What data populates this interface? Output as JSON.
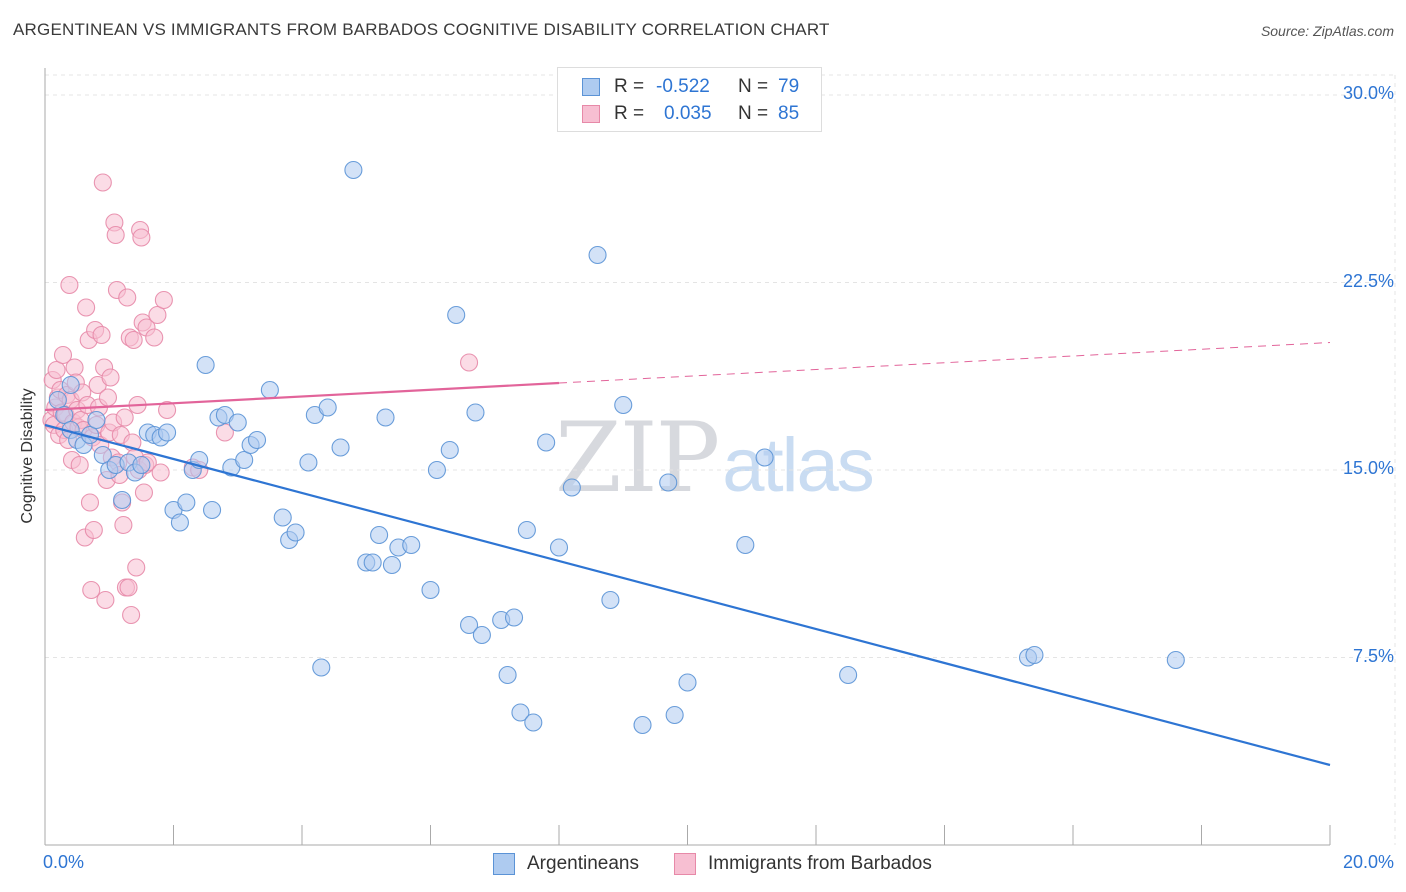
{
  "header": {
    "title": "ARGENTINEAN VS IMMIGRANTS FROM BARBADOS COGNITIVE DISABILITY CORRELATION CHART",
    "source": "Source: ZipAtlas.com"
  },
  "legend": {
    "rows": [
      {
        "r_label": "R =",
        "r_value": "-0.522",
        "n_label": "N =",
        "n_value": "79"
      },
      {
        "r_label": "R =",
        "r_value": "0.035",
        "n_label": "N =",
        "n_value": "85"
      }
    ]
  },
  "bottom_legend": {
    "items": [
      {
        "label": "Argentineans"
      },
      {
        "label": "Immigrants from Barbados"
      }
    ]
  },
  "watermark": {
    "zip": "ZIP",
    "atlas": "atlas"
  },
  "colors": {
    "blue_fill": "#aecbf0",
    "blue_stroke": "#5b93d6",
    "blue_line": "#2e75d3",
    "pink_fill": "#f7bfd2",
    "pink_stroke": "#e789a8",
    "pink_line": "#e2649a",
    "tick_text": "#2e75d3",
    "grid": "#e4e4e4"
  },
  "chart_data": {
    "type": "scatter",
    "title": "ARGENTINEAN VS IMMIGRANTS FROM BARBADOS COGNITIVE DISABILITY CORRELATION CHART",
    "ylabel": "Cognitive Disability",
    "xlabel": "",
    "xlim": [
      0,
      20
    ],
    "ylim": [
      0,
      30.8
    ],
    "x_tick_labels": [
      "0.0%",
      "20.0%"
    ],
    "y_ticks": [
      7.5,
      15.0,
      22.5,
      30.0
    ],
    "y_tick_labels": [
      "7.5%",
      "15.0%",
      "22.5%",
      "30.0%"
    ],
    "grid": true,
    "legend_position": "top-center",
    "series": [
      {
        "name": "Argentineans",
        "color": "#aecbf0",
        "trend": {
          "x": [
            0,
            20
          ],
          "y": [
            16.8,
            3.2
          ],
          "dashed_from": null
        },
        "points": [
          [
            0.2,
            17.8
          ],
          [
            0.3,
            17.2
          ],
          [
            0.4,
            16.6
          ],
          [
            0.5,
            16.2
          ],
          [
            0.6,
            16.0
          ],
          [
            0.7,
            16.4
          ],
          [
            0.8,
            17.0
          ],
          [
            0.9,
            15.6
          ],
          [
            1.0,
            15.0
          ],
          [
            1.1,
            15.2
          ],
          [
            1.2,
            13.8
          ],
          [
            1.3,
            15.3
          ],
          [
            1.4,
            14.9
          ],
          [
            1.5,
            15.2
          ],
          [
            1.6,
            16.5
          ],
          [
            1.7,
            16.4
          ],
          [
            1.8,
            16.3
          ],
          [
            1.9,
            16.5
          ],
          [
            2.0,
            13.4
          ],
          [
            2.1,
            12.9
          ],
          [
            2.2,
            13.7
          ],
          [
            2.3,
            15.0
          ],
          [
            2.4,
            15.4
          ],
          [
            2.5,
            19.2
          ],
          [
            2.6,
            13.4
          ],
          [
            2.7,
            17.1
          ],
          [
            2.8,
            17.2
          ],
          [
            2.9,
            15.1
          ],
          [
            3.0,
            16.9
          ],
          [
            3.1,
            15.4
          ],
          [
            3.2,
            16.0
          ],
          [
            3.3,
            16.2
          ],
          [
            3.5,
            18.2
          ],
          [
            3.7,
            13.1
          ],
          [
            3.8,
            12.2
          ],
          [
            3.9,
            12.5
          ],
          [
            4.1,
            15.3
          ],
          [
            4.2,
            17.2
          ],
          [
            4.3,
            7.1
          ],
          [
            4.4,
            17.5
          ],
          [
            4.6,
            15.9
          ],
          [
            4.8,
            27.0
          ],
          [
            5.0,
            11.3
          ],
          [
            5.1,
            11.3
          ],
          [
            5.2,
            12.4
          ],
          [
            5.3,
            17.1
          ],
          [
            5.4,
            11.2
          ],
          [
            5.5,
            11.9
          ],
          [
            5.7,
            12.0
          ],
          [
            6.0,
            10.2
          ],
          [
            6.1,
            15.0
          ],
          [
            6.3,
            15.8
          ],
          [
            6.4,
            21.2
          ],
          [
            6.6,
            8.8
          ],
          [
            6.7,
            17.3
          ],
          [
            6.8,
            8.4
          ],
          [
            7.1,
            9.0
          ],
          [
            7.2,
            6.8
          ],
          [
            7.3,
            9.1
          ],
          [
            7.4,
            5.3
          ],
          [
            7.5,
            12.6
          ],
          [
            7.6,
            4.9
          ],
          [
            7.8,
            16.1
          ],
          [
            8.0,
            11.9
          ],
          [
            8.2,
            14.3
          ],
          [
            8.6,
            23.6
          ],
          [
            8.8,
            9.8
          ],
          [
            9.0,
            17.6
          ],
          [
            9.3,
            4.8
          ],
          [
            9.7,
            14.5
          ],
          [
            9.8,
            5.2
          ],
          [
            10.0,
            6.5
          ],
          [
            10.9,
            12.0
          ],
          [
            11.2,
            15.5
          ],
          [
            12.5,
            6.8
          ],
          [
            15.3,
            7.5
          ],
          [
            15.4,
            7.6
          ],
          [
            17.6,
            7.4
          ],
          [
            0.4,
            18.4
          ]
        ]
      },
      {
        "name": "Immigrants from Barbados",
        "color": "#f7bfd2",
        "trend": {
          "x": [
            0,
            20
          ],
          "y": [
            17.4,
            20.1
          ],
          "dashed_from": 8.0
        },
        "points": [
          [
            0.1,
            17.0
          ],
          [
            0.12,
            18.6
          ],
          [
            0.14,
            16.8
          ],
          [
            0.16,
            17.5
          ],
          [
            0.18,
            19.0
          ],
          [
            0.2,
            17.9
          ],
          [
            0.22,
            16.4
          ],
          [
            0.24,
            18.2
          ],
          [
            0.26,
            17.3
          ],
          [
            0.28,
            19.6
          ],
          [
            0.3,
            16.6
          ],
          [
            0.32,
            17.2
          ],
          [
            0.34,
            18.0
          ],
          [
            0.36,
            16.2
          ],
          [
            0.38,
            22.4
          ],
          [
            0.4,
            17.8
          ],
          [
            0.42,
            15.4
          ],
          [
            0.44,
            16.9
          ],
          [
            0.46,
            19.1
          ],
          [
            0.48,
            18.5
          ],
          [
            0.5,
            17.4
          ],
          [
            0.52,
            16.7
          ],
          [
            0.54,
            15.2
          ],
          [
            0.56,
            17.0
          ],
          [
            0.58,
            18.1
          ],
          [
            0.6,
            16.6
          ],
          [
            0.62,
            12.3
          ],
          [
            0.64,
            21.5
          ],
          [
            0.66,
            17.6
          ],
          [
            0.68,
            20.2
          ],
          [
            0.7,
            13.7
          ],
          [
            0.72,
            10.2
          ],
          [
            0.74,
            16.3
          ],
          [
            0.76,
            12.6
          ],
          [
            0.78,
            20.6
          ],
          [
            0.8,
            16.8
          ],
          [
            0.82,
            18.4
          ],
          [
            0.84,
            17.5
          ],
          [
            0.86,
            16.0
          ],
          [
            0.88,
            20.4
          ],
          [
            0.9,
            26.5
          ],
          [
            0.92,
            19.1
          ],
          [
            0.94,
            9.8
          ],
          [
            0.96,
            14.6
          ],
          [
            0.98,
            17.9
          ],
          [
            1.0,
            16.5
          ],
          [
            1.02,
            18.7
          ],
          [
            1.04,
            15.5
          ],
          [
            1.06,
            16.9
          ],
          [
            1.08,
            24.9
          ],
          [
            1.1,
            24.4
          ],
          [
            1.12,
            22.2
          ],
          [
            1.14,
            15.3
          ],
          [
            1.16,
            14.8
          ],
          [
            1.18,
            16.4
          ],
          [
            1.2,
            13.7
          ],
          [
            1.22,
            12.8
          ],
          [
            1.24,
            17.1
          ],
          [
            1.26,
            10.3
          ],
          [
            1.28,
            21.9
          ],
          [
            1.3,
            10.3
          ],
          [
            1.32,
            20.3
          ],
          [
            1.34,
            9.2
          ],
          [
            1.36,
            16.1
          ],
          [
            1.38,
            20.2
          ],
          [
            1.4,
            15.5
          ],
          [
            1.42,
            11.1
          ],
          [
            1.44,
            17.6
          ],
          [
            1.46,
            15.0
          ],
          [
            1.48,
            24.6
          ],
          [
            1.5,
            24.3
          ],
          [
            1.52,
            20.9
          ],
          [
            1.54,
            14.1
          ],
          [
            1.56,
            15.2
          ],
          [
            1.58,
            20.7
          ],
          [
            1.6,
            15.3
          ],
          [
            1.7,
            20.3
          ],
          [
            1.75,
            21.2
          ],
          [
            1.8,
            14.9
          ],
          [
            1.85,
            21.8
          ],
          [
            1.9,
            17.4
          ],
          [
            2.3,
            15.1
          ],
          [
            2.8,
            16.5
          ],
          [
            2.4,
            15.0
          ],
          [
            6.6,
            19.3
          ]
        ]
      }
    ]
  }
}
